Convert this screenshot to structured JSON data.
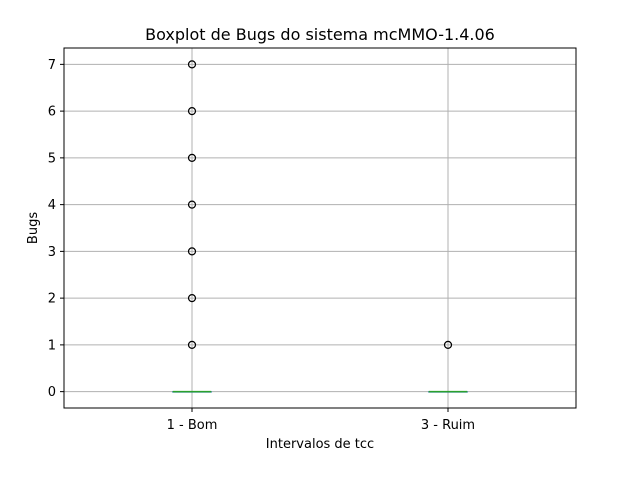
{
  "chart_data": {
    "type": "box",
    "title": "Boxplot de Bugs do sistema mcMMO-1.4.06",
    "xlabel": "Intervalos de tcc",
    "ylabel": "Bugs",
    "categories": [
      "1 - Bom",
      "3 - Ruim"
    ],
    "ylim": [
      -0.35,
      7.35
    ],
    "yticks": [
      0,
      1,
      2,
      3,
      4,
      5,
      6,
      7
    ],
    "grid": true,
    "boxes": [
      {
        "category": "1 - Bom",
        "min": 0,
        "q1": 0,
        "median": 0,
        "q3": 0,
        "max": 0,
        "outliers": [
          1,
          2,
          3,
          4,
          5,
          6,
          7
        ]
      },
      {
        "category": "3 - Ruim",
        "min": 0,
        "q1": 0,
        "median": 0,
        "q3": 0,
        "max": 0,
        "outliers": [
          1
        ]
      }
    ],
    "colors": {
      "median": "#2ca02c",
      "box": "#1f77b4",
      "grid": "#b0b0b0"
    }
  }
}
